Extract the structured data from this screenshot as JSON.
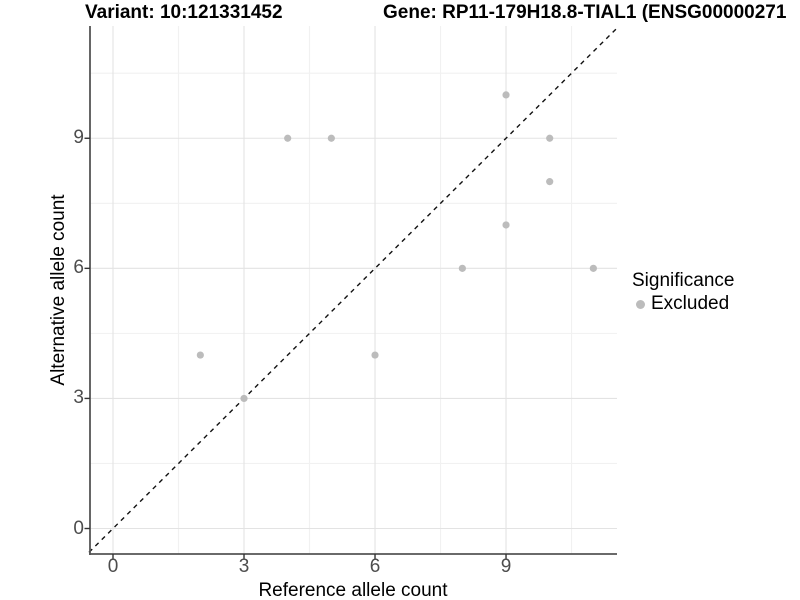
{
  "titles": {
    "variant": "Variant: 10:121331452",
    "gene": "Gene: RP11-179H18.8-TIAL1 (ENSG00000271"
  },
  "axes": {
    "x_label": "Reference allele count",
    "y_label": "Alternative allele count",
    "x_tick_labels": [
      "0",
      "3",
      "6",
      "9"
    ],
    "y_tick_labels": [
      "0",
      "3",
      "6",
      "9"
    ]
  },
  "legend": {
    "title": "Significance",
    "items": [
      {
        "label": "Excluded",
        "color": "#bcbcbc"
      }
    ]
  },
  "chart_data": {
    "type": "scatter",
    "title_left": "Variant: 10:121331452",
    "title_right": "Gene: RP11-179H18.8-TIAL1 (ENSG00000271",
    "xlabel": "Reference allele count",
    "ylabel": "Alternative allele count",
    "xlim": [
      -0.55,
      11.55
    ],
    "ylim": [
      -0.55,
      11.55
    ],
    "x_major_ticks": [
      0,
      3,
      6,
      9
    ],
    "y_major_ticks": [
      0,
      3,
      6,
      9
    ],
    "x_minor_gridlines": [
      1.5,
      4.5,
      7.5,
      10.5
    ],
    "y_minor_gridlines": [
      1.5,
      4.5,
      7.5,
      10.5
    ],
    "grid": true,
    "legend_position": "right",
    "series": [
      {
        "name": "Excluded",
        "color": "#bcbcbc",
        "marker": "circle",
        "points": [
          [
            2,
            4
          ],
          [
            3,
            3
          ],
          [
            4,
            9
          ],
          [
            5,
            9
          ],
          [
            6,
            4
          ],
          [
            8,
            6
          ],
          [
            9,
            7
          ],
          [
            9,
            10
          ],
          [
            10,
            8
          ],
          [
            10,
            9
          ],
          [
            11,
            6
          ]
        ]
      }
    ],
    "reference_line": {
      "type": "identity",
      "equation": "y = x",
      "style": "dashed",
      "color": "#111111"
    }
  },
  "colors": {
    "background": "#ffffff",
    "grid_major": "#e3e3e3",
    "grid_minor": "#f1f1f1",
    "axis_line": "#555555",
    "tick_mark": "#333333",
    "tick_text": "#4d4d4d",
    "point": "#bcbcbc"
  }
}
